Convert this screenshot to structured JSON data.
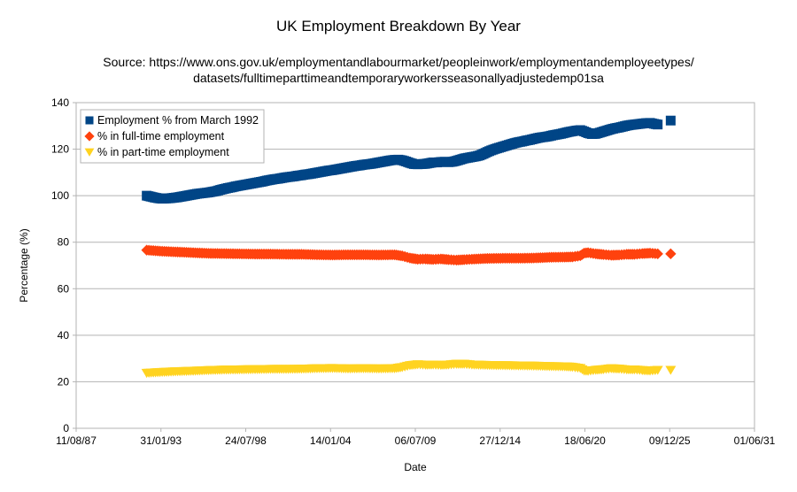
{
  "chart_data": {
    "type": "scatter",
    "title": "UK Employment Breakdown By Year",
    "subtitle_lines": [
      "Source: https://www.ons.gov.uk/employmentandlabourmarket/peopleinwork/employmentandemployeetypes/",
      "datasets/fulltimeparttimeandtemporaryworkersseasonallyadjustedemp01sa"
    ],
    "xlabel": "Date",
    "ylabel": "Percentage (%)",
    "ylim": [
      0,
      140
    ],
    "yticks": [
      0,
      20,
      40,
      60,
      80,
      100,
      120,
      140
    ],
    "xlim": [
      "1987-08-11",
      "2031-06-01"
    ],
    "xticks": [
      "11/08/87",
      "31/01/93",
      "24/07/98",
      "14/01/04",
      "06/07/09",
      "27/12/14",
      "18/06/20",
      "09/12/25",
      "01/06/31"
    ],
    "grid": "horizontal",
    "legend_position": "top-left",
    "series": [
      {
        "name": "Employment % from March 1992",
        "color": "#004586",
        "marker": "square",
        "points": [
          [
            "1992-03-01",
            100.0
          ],
          [
            "1992-06-01",
            99.6
          ],
          [
            "1992-09-01",
            99.2
          ],
          [
            "1992-12-01",
            98.9
          ],
          [
            "1993-03-01",
            98.7
          ],
          [
            "1993-06-01",
            98.8
          ],
          [
            "1993-09-01",
            98.9
          ],
          [
            "1993-12-01",
            99.1
          ],
          [
            "1994-03-01",
            99.3
          ],
          [
            "1994-06-01",
            99.6
          ],
          [
            "1994-09-01",
            99.9
          ],
          [
            "1994-12-01",
            100.2
          ],
          [
            "1995-03-01",
            100.5
          ],
          [
            "1995-06-01",
            100.8
          ],
          [
            "1995-09-01",
            101.0
          ],
          [
            "1995-12-01",
            101.2
          ],
          [
            "1996-03-01",
            101.4
          ],
          [
            "1996-06-01",
            101.7
          ],
          [
            "1996-09-01",
            102.0
          ],
          [
            "1996-12-01",
            102.5
          ],
          [
            "1997-03-01",
            102.9
          ],
          [
            "1997-06-01",
            103.3
          ],
          [
            "1997-09-01",
            103.6
          ],
          [
            "1997-12-01",
            104.0
          ],
          [
            "1998-03-01",
            104.3
          ],
          [
            "1998-06-01",
            104.6
          ],
          [
            "1998-09-01",
            104.9
          ],
          [
            "1998-12-01",
            105.2
          ],
          [
            "1999-03-01",
            105.5
          ],
          [
            "1999-06-01",
            105.8
          ],
          [
            "1999-09-01",
            106.1
          ],
          [
            "1999-12-01",
            106.5
          ],
          [
            "2000-03-01",
            106.8
          ],
          [
            "2000-06-01",
            107.1
          ],
          [
            "2000-09-01",
            107.3
          ],
          [
            "2000-12-01",
            107.6
          ],
          [
            "2001-03-01",
            107.9
          ],
          [
            "2001-06-01",
            108.1
          ],
          [
            "2001-09-01",
            108.3
          ],
          [
            "2001-12-01",
            108.6
          ],
          [
            "2002-03-01",
            108.8
          ],
          [
            "2002-06-01",
            109.1
          ],
          [
            "2002-09-01",
            109.3
          ],
          [
            "2002-12-01",
            109.6
          ],
          [
            "2003-03-01",
            109.9
          ],
          [
            "2003-06-01",
            110.2
          ],
          [
            "2003-09-01",
            110.5
          ],
          [
            "2003-12-01",
            110.8
          ],
          [
            "2004-03-01",
            111.0
          ],
          [
            "2004-06-01",
            111.3
          ],
          [
            "2004-09-01",
            111.6
          ],
          [
            "2004-12-01",
            111.9
          ],
          [
            "2005-03-01",
            112.2
          ],
          [
            "2005-06-01",
            112.5
          ],
          [
            "2005-09-01",
            112.8
          ],
          [
            "2005-12-01",
            113.0
          ],
          [
            "2006-03-01",
            113.3
          ],
          [
            "2006-06-01",
            113.5
          ],
          [
            "2006-09-01",
            113.7
          ],
          [
            "2006-12-01",
            114.0
          ],
          [
            "2007-03-01",
            114.3
          ],
          [
            "2007-06-01",
            114.6
          ],
          [
            "2007-09-01",
            114.9
          ],
          [
            "2007-12-01",
            115.2
          ],
          [
            "2008-03-01",
            115.4
          ],
          [
            "2008-06-01",
            115.5
          ],
          [
            "2008-09-01",
            115.2
          ],
          [
            "2008-12-01",
            114.7
          ],
          [
            "2009-03-01",
            114.1
          ],
          [
            "2009-06-01",
            113.6
          ],
          [
            "2009-09-01",
            113.5
          ],
          [
            "2009-12-01",
            113.6
          ],
          [
            "2010-03-01",
            113.7
          ],
          [
            "2010-06-01",
            114.0
          ],
          [
            "2010-09-01",
            114.3
          ],
          [
            "2010-12-01",
            114.3
          ],
          [
            "2011-03-01",
            114.5
          ],
          [
            "2011-06-01",
            114.6
          ],
          [
            "2011-09-01",
            114.4
          ],
          [
            "2011-12-01",
            114.6
          ],
          [
            "2012-03-01",
            115.0
          ],
          [
            "2012-06-01",
            115.5
          ],
          [
            "2012-09-01",
            116.0
          ],
          [
            "2012-12-01",
            116.3
          ],
          [
            "2013-03-01",
            116.6
          ],
          [
            "2013-06-01",
            116.9
          ],
          [
            "2013-09-01",
            117.3
          ],
          [
            "2013-12-01",
            118.0
          ],
          [
            "2014-03-01",
            118.8
          ],
          [
            "2014-06-01",
            119.5
          ],
          [
            "2014-09-01",
            120.1
          ],
          [
            "2014-12-01",
            120.6
          ],
          [
            "2015-03-01",
            121.1
          ],
          [
            "2015-06-01",
            121.6
          ],
          [
            "2015-09-01",
            122.1
          ],
          [
            "2015-12-01",
            122.6
          ],
          [
            "2016-03-01",
            123.0
          ],
          [
            "2016-06-01",
            123.3
          ],
          [
            "2016-09-01",
            123.7
          ],
          [
            "2016-12-01",
            124.0
          ],
          [
            "2017-03-01",
            124.4
          ],
          [
            "2017-06-01",
            124.8
          ],
          [
            "2017-09-01",
            125.1
          ],
          [
            "2017-12-01",
            125.3
          ],
          [
            "2018-03-01",
            125.6
          ],
          [
            "2018-06-01",
            126.0
          ],
          [
            "2018-09-01",
            126.3
          ],
          [
            "2018-12-01",
            126.6
          ],
          [
            "2019-03-01",
            127.0
          ],
          [
            "2019-06-01",
            127.4
          ],
          [
            "2019-09-01",
            127.7
          ],
          [
            "2019-12-01",
            128.0
          ],
          [
            "2020-03-01",
            128.2
          ],
          [
            "2020-06-01",
            127.6
          ],
          [
            "2020-09-01",
            126.9
          ],
          [
            "2020-12-01",
            126.5
          ],
          [
            "2021-03-01",
            126.6
          ],
          [
            "2021-06-01",
            127.1
          ],
          [
            "2021-09-01",
            127.6
          ],
          [
            "2021-12-01",
            128.1
          ],
          [
            "2022-03-01",
            128.6
          ],
          [
            "2022-06-01",
            129.0
          ],
          [
            "2022-09-01",
            129.3
          ],
          [
            "2022-12-01",
            129.7
          ],
          [
            "2023-03-01",
            130.1
          ],
          [
            "2023-06-01",
            130.4
          ],
          [
            "2023-09-01",
            130.6
          ],
          [
            "2023-12-01",
            130.8
          ],
          [
            "2024-03-01",
            131.0
          ],
          [
            "2024-06-01",
            131.2
          ],
          [
            "2024-09-01",
            131.3
          ],
          [
            "2024-12-01",
            130.9
          ],
          [
            "2025-03-01",
            130.6
          ],
          [
            "2026-01-01",
            132.3
          ]
        ]
      },
      {
        "name": "% in full-time employment",
        "color": "#ff420e",
        "marker": "diamond",
        "points": [
          [
            "1992-03-01",
            76.6
          ],
          [
            "1993-03-01",
            76.1
          ],
          [
            "1994-03-01",
            75.8
          ],
          [
            "1995-03-01",
            75.5
          ],
          [
            "1996-03-01",
            75.2
          ],
          [
            "1997-03-01",
            75.1
          ],
          [
            "1998-03-01",
            75.0
          ],
          [
            "1999-03-01",
            74.9
          ],
          [
            "2000-03-01",
            74.9
          ],
          [
            "2001-03-01",
            74.8
          ],
          [
            "2002-03-01",
            74.8
          ],
          [
            "2003-03-01",
            74.6
          ],
          [
            "2004-03-01",
            74.5
          ],
          [
            "2005-03-01",
            74.6
          ],
          [
            "2006-03-01",
            74.6
          ],
          [
            "2007-03-01",
            74.5
          ],
          [
            "2008-03-01",
            74.6
          ],
          [
            "2008-09-01",
            74.1
          ],
          [
            "2009-03-01",
            73.2
          ],
          [
            "2009-09-01",
            72.7
          ],
          [
            "2010-03-01",
            72.8
          ],
          [
            "2010-09-01",
            72.6
          ],
          [
            "2011-03-01",
            72.8
          ],
          [
            "2011-09-01",
            72.5
          ],
          [
            "2012-03-01",
            72.3
          ],
          [
            "2012-09-01",
            72.5
          ],
          [
            "2013-03-01",
            72.7
          ],
          [
            "2014-03-01",
            73.0
          ],
          [
            "2015-03-01",
            73.1
          ],
          [
            "2016-03-01",
            73.1
          ],
          [
            "2017-03-01",
            73.2
          ],
          [
            "2018-03-01",
            73.5
          ],
          [
            "2019-03-01",
            73.6
          ],
          [
            "2019-09-01",
            73.7
          ],
          [
            "2020-03-01",
            74.2
          ],
          [
            "2020-06-01",
            75.3
          ],
          [
            "2020-09-01",
            75.5
          ],
          [
            "2021-03-01",
            75.0
          ],
          [
            "2021-09-01",
            74.7
          ],
          [
            "2022-03-01",
            74.4
          ],
          [
            "2022-09-01",
            74.5
          ],
          [
            "2023-03-01",
            74.8
          ],
          [
            "2023-09-01",
            74.8
          ],
          [
            "2024-03-01",
            75.1
          ],
          [
            "2024-09-01",
            75.3
          ],
          [
            "2025-03-01",
            75.0
          ],
          [
            "2026-01-01",
            75.0
          ]
        ]
      },
      {
        "name": "% in part-time employment",
        "color": "#ffd320",
        "marker": "triangle-down",
        "points": [
          [
            "1992-03-01",
            23.7
          ],
          [
            "1993-03-01",
            24.1
          ],
          [
            "1994-03-01",
            24.4
          ],
          [
            "1995-03-01",
            24.6
          ],
          [
            "1996-03-01",
            24.9
          ],
          [
            "1997-03-01",
            25.1
          ],
          [
            "1998-03-01",
            25.2
          ],
          [
            "1999-03-01",
            25.3
          ],
          [
            "2000-03-01",
            25.4
          ],
          [
            "2001-03-01",
            25.4
          ],
          [
            "2002-03-01",
            25.5
          ],
          [
            "2003-03-01",
            25.7
          ],
          [
            "2004-03-01",
            25.8
          ],
          [
            "2005-03-01",
            25.6
          ],
          [
            "2006-03-01",
            25.7
          ],
          [
            "2007-03-01",
            25.6
          ],
          [
            "2008-03-01",
            25.7
          ],
          [
            "2008-09-01",
            26.2
          ],
          [
            "2009-03-01",
            27.0
          ],
          [
            "2009-09-01",
            27.4
          ],
          [
            "2010-03-01",
            27.2
          ],
          [
            "2010-09-01",
            27.3
          ],
          [
            "2011-03-01",
            27.1
          ],
          [
            "2011-09-01",
            27.3
          ],
          [
            "2012-03-01",
            27.6
          ],
          [
            "2012-09-01",
            27.6
          ],
          [
            "2013-03-01",
            27.3
          ],
          [
            "2014-03-01",
            27.1
          ],
          [
            "2015-03-01",
            27.0
          ],
          [
            "2016-03-01",
            26.9
          ],
          [
            "2017-03-01",
            26.8
          ],
          [
            "2018-03-01",
            26.6
          ],
          [
            "2019-03-01",
            26.5
          ],
          [
            "2019-09-01",
            26.3
          ],
          [
            "2020-03-01",
            25.8
          ],
          [
            "2020-06-01",
            24.7
          ],
          [
            "2020-09-01",
            24.6
          ],
          [
            "2021-03-01",
            25.0
          ],
          [
            "2021-09-01",
            25.3
          ],
          [
            "2022-03-01",
            25.7
          ],
          [
            "2022-09-01",
            25.5
          ],
          [
            "2023-03-01",
            25.2
          ],
          [
            "2023-09-01",
            25.2
          ],
          [
            "2024-03-01",
            24.9
          ],
          [
            "2024-09-01",
            24.7
          ],
          [
            "2025-03-01",
            25.0
          ],
          [
            "2026-01-01",
            25.0
          ]
        ]
      }
    ]
  }
}
